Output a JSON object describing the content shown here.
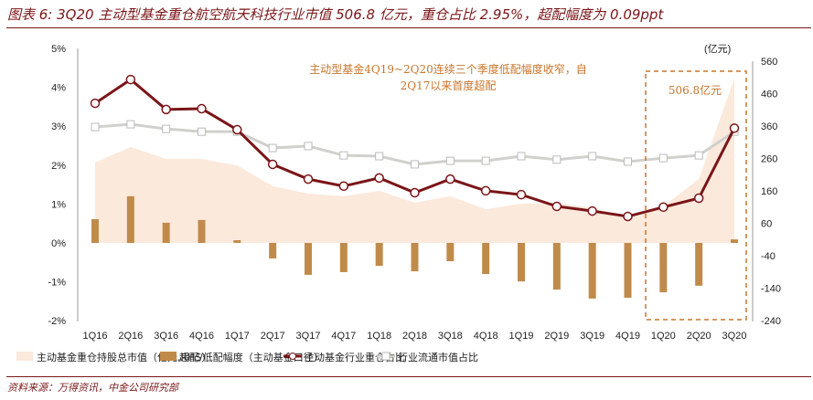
{
  "title": "图表 6: 3Q20 主动型基金重仓航空航天科技行业市值 506.8 亿元，重仓占比 2.95%，超配幅度为 0.09ppt",
  "source": "资料来源：万得资讯，中金公司研究部",
  "chart_data": {
    "type": "bar+line+area",
    "categories": [
      "1Q16",
      "2Q16",
      "3Q16",
      "4Q16",
      "1Q17",
      "2Q17",
      "3Q17",
      "4Q17",
      "1Q18",
      "2Q18",
      "3Q18",
      "4Q18",
      "1Q19",
      "2Q19",
      "3Q19",
      "4Q19",
      "1Q20",
      "2Q20",
      "3Q20"
    ],
    "left_axis": {
      "ylim": [
        -2,
        5
      ],
      "ticks": [
        "-2%",
        "-1%",
        "0%",
        "1%",
        "2%",
        "3%",
        "4%",
        "5%"
      ]
    },
    "right_axis": {
      "unit": "(亿元)",
      "ylim": [
        -240,
        560
      ],
      "ticks": [
        "-240",
        "-140",
        "-40",
        "60",
        "160",
        "260",
        "360",
        "460",
        "560"
      ]
    },
    "series": [
      {
        "name": "主动基金重仓持股总市值（亿元,RHS）",
        "kind": "area",
        "axis": "right",
        "color": "#fbe9dc",
        "values": [
          248,
          296,
          259,
          259,
          239,
          175,
          152,
          144,
          161,
          124,
          144,
          104,
          121,
          124,
          107,
          82,
          113,
          197,
          506.8
        ]
      },
      {
        "name": "超配/低配幅度（主动基金口径）",
        "kind": "bar",
        "axis": "left",
        "color": "#c08b4a",
        "values": [
          0.61,
          1.2,
          0.52,
          0.59,
          0.07,
          -0.4,
          -0.82,
          -0.75,
          -0.59,
          -0.73,
          -0.47,
          -0.8,
          -0.99,
          -1.2,
          -1.43,
          -1.41,
          -1.27,
          -1.1,
          0.09
        ]
      },
      {
        "name": "主动基金行业重仓占比",
        "kind": "line",
        "axis": "left",
        "color": "#7a1518",
        "values": [
          3.59,
          4.2,
          3.43,
          3.45,
          2.91,
          2.02,
          1.64,
          1.46,
          1.67,
          1.29,
          1.64,
          1.34,
          1.24,
          0.94,
          0.82,
          0.68,
          0.92,
          1.15,
          2.95
        ]
      },
      {
        "name": "行业流通市值占比",
        "kind": "line",
        "axis": "left",
        "color": "#d0d0cc",
        "values": [
          2.98,
          3.05,
          2.93,
          2.86,
          2.86,
          2.44,
          2.49,
          2.25,
          2.23,
          2.02,
          2.11,
          2.11,
          2.23,
          2.14,
          2.23,
          2.09,
          2.18,
          2.25,
          2.86
        ]
      }
    ],
    "annotations": [
      "主动型基金4Q19~2Q20连续三个季度低配幅度收窄，自",
      "2Q17以来首度超配",
      "506.8亿元"
    ]
  }
}
